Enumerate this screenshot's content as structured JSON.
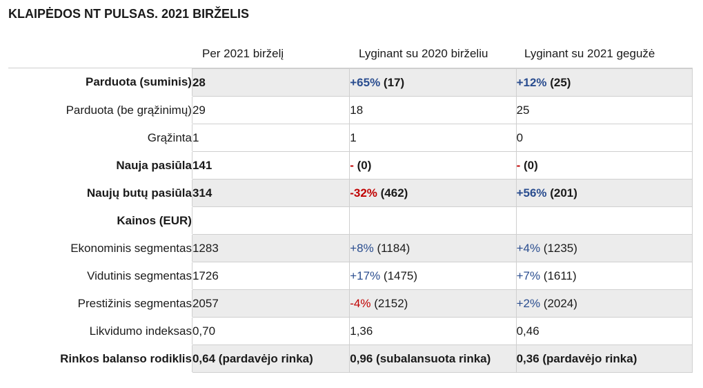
{
  "title": "KLAIPĖDOS NT PULSAS. 2021 BIRŽELIS",
  "columns": [
    "Per 2021 birželį",
    "Lyginant su 2020 birželiu",
    "Lyginant su 2021 gegužė"
  ],
  "rows": [
    {
      "label": "Parduota (suminis)",
      "bold": true,
      "shade": true,
      "c1": "28",
      "c2": {
        "change": "+65%",
        "dir": "pos",
        "rest": " (17)"
      },
      "c3": {
        "change": "+12%",
        "dir": "pos",
        "rest": " (25)"
      }
    },
    {
      "label": "Parduota (be grąžinimų)",
      "bold": false,
      "shade": false,
      "c1": "29",
      "c2": {
        "change": "",
        "dir": "",
        "rest": "18"
      },
      "c3": {
        "change": "",
        "dir": "",
        "rest": "25"
      }
    },
    {
      "label": "Grąžinta",
      "bold": false,
      "shade": false,
      "c1": "1",
      "c2": {
        "change": "",
        "dir": "",
        "rest": "1"
      },
      "c3": {
        "change": "",
        "dir": "",
        "rest": "0"
      }
    },
    {
      "label": "Nauja pasiūla",
      "bold": true,
      "shade": false,
      "c1": "141",
      "c2": {
        "change": "-",
        "dir": "neg",
        "rest": " (0)"
      },
      "c3": {
        "change": "-",
        "dir": "neg",
        "rest": " (0)"
      }
    },
    {
      "label": "Naujų butų pasiūla",
      "bold": true,
      "shade": true,
      "c1": "314",
      "c2": {
        "change": "-32%",
        "dir": "neg",
        "rest": " (462)"
      },
      "c3": {
        "change": "+56%",
        "dir": "pos",
        "rest": " (201)"
      }
    },
    {
      "label": "Kainos (EUR)",
      "bold": true,
      "shade": false,
      "c1": "",
      "c2": {
        "change": "",
        "dir": "",
        "rest": ""
      },
      "c3": {
        "change": "",
        "dir": "",
        "rest": ""
      }
    },
    {
      "label": "Ekonominis segmentas",
      "bold": false,
      "shade": true,
      "c1": "1283",
      "c2": {
        "change": "+8%",
        "dir": "pos",
        "rest": " (1184)"
      },
      "c3": {
        "change": "+4%",
        "dir": "pos",
        "rest": " (1235)"
      }
    },
    {
      "label": "Vidutinis segmentas",
      "bold": false,
      "shade": false,
      "c1": "1726",
      "c2": {
        "change": "+17%",
        "dir": "pos",
        "rest": " (1475)"
      },
      "c3": {
        "change": "+7%",
        "dir": "pos",
        "rest": " (1611)"
      }
    },
    {
      "label": "Prestižinis segmentas",
      "bold": false,
      "shade": true,
      "c1": "2057",
      "c2": {
        "change": "-4%",
        "dir": "neg",
        "rest": " (2152)"
      },
      "c3": {
        "change": "+2%",
        "dir": "pos",
        "rest": " (2024)"
      }
    },
    {
      "label": "Likvidumo indeksas",
      "bold": false,
      "shade": false,
      "c1": "0,70",
      "c2": {
        "change": "",
        "dir": "",
        "rest": "1,36"
      },
      "c3": {
        "change": "",
        "dir": "",
        "rest": "0,46"
      }
    },
    {
      "label": "Rinkos balanso rodiklis",
      "bold": true,
      "shade": true,
      "c1": "0,64 (pardavėjo rinka)",
      "c2": {
        "change": "",
        "dir": "",
        "rest": "0,96 (subalansuota rinka)"
      },
      "c3": {
        "change": "",
        "dir": "",
        "rest": "0,36 (pardavėjo rinka)"
      }
    }
  ],
  "colors": {
    "positive": "#2a4d8f",
    "negative": "#c00000",
    "shade": "#ececec",
    "border": "#cfcfcf"
  }
}
